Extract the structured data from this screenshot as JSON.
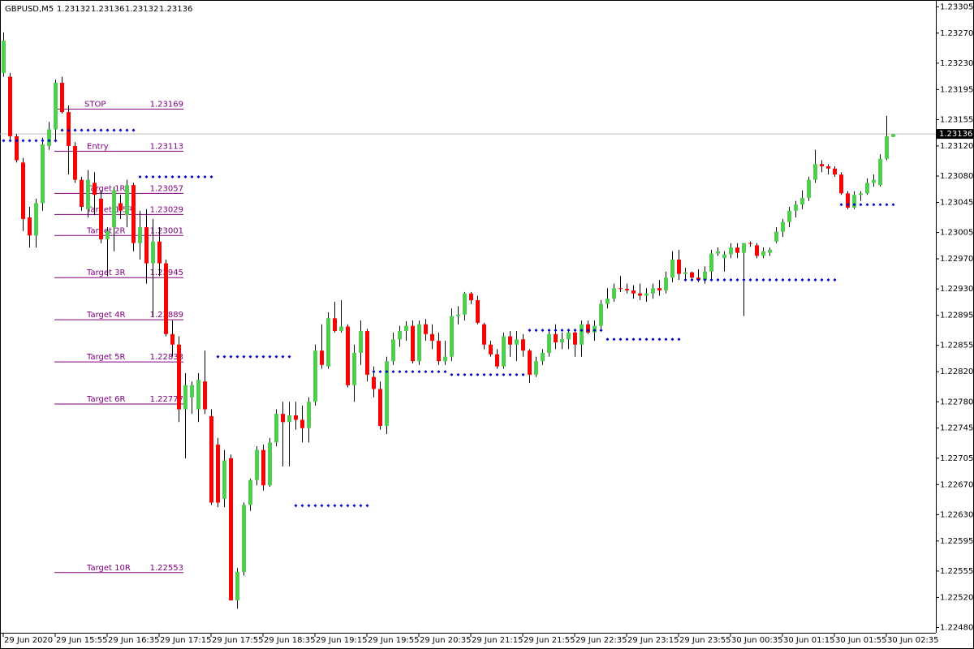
{
  "chart_data": {
    "type": "candlestick",
    "title": "GBPUSD,M5",
    "categories": [
      "29 Jun 2020",
      null,
      null,
      null,
      null,
      null,
      null,
      null,
      "29 Jun 15:55",
      null,
      null,
      null,
      null,
      null,
      null,
      null,
      "29 Jun 16:35",
      null,
      null,
      null,
      null,
      null,
      null,
      null,
      "29 Jun 17:15",
      null,
      null,
      null,
      null,
      null,
      null,
      null,
      "29 Jun 17:55",
      null,
      null,
      null,
      null,
      null,
      null,
      null,
      "29 Jun 18:35",
      null,
      null,
      null,
      null,
      null,
      null,
      null,
      "29 Jun 19:15",
      null,
      null,
      null,
      null,
      null,
      null,
      null,
      "29 Jun 19:55",
      null,
      null,
      null,
      null,
      null,
      null,
      null,
      "29 Jun 20:35",
      null,
      null,
      null,
      null,
      null,
      null,
      null,
      "29 Jun 21:15",
      null,
      null,
      null,
      null,
      null,
      null,
      null,
      "29 Jun 21:55",
      null,
      null,
      null,
      null,
      null,
      null,
      null,
      "29 Jun 22:35",
      null,
      null,
      null,
      null,
      null,
      null,
      null,
      "29 Jun 23:15",
      null,
      null,
      null,
      null,
      null,
      null,
      null,
      "29 Jun 23:55",
      null,
      null,
      null,
      null,
      null,
      null,
      null,
      "30 Jun 00:35",
      null,
      null,
      null,
      null,
      null,
      null,
      null,
      "30 Jun 01:15",
      null,
      null,
      null,
      null,
      null,
      null,
      null,
      "30 Jun 01:55",
      null,
      null,
      null,
      null,
      null,
      null,
      null,
      "30 Jun 02:35",
      null
    ],
    "open": [
      1.23217,
      1.23212,
      1.23133,
      1.23098,
      1.23025,
      1.23001,
      1.23044,
      1.2312,
      1.23142,
      1.23204,
      1.23165,
      1.2312,
      1.23075,
      1.23036,
      1.23071,
      1.2305,
      1.22996,
      1.23012,
      1.23044,
      1.23028,
      1.23068,
      1.22991,
      1.23012,
      1.22964,
      1.22993,
      1.22964,
      1.2287,
      1.22856,
      1.2277,
      1.22786,
      1.2277,
      1.22807,
      1.22761,
      1.22723,
      1.22651,
      1.22705,
      1.22516,
      1.22554,
      1.22643,
      1.22676,
      1.22716,
      1.22669,
      1.22726,
      1.22764,
      1.22753,
      1.22762,
      1.22756,
      1.22745,
      1.2278,
      1.22848,
      1.22827,
      1.22891,
      1.22874,
      1.2288,
      1.22802,
      1.22845,
      1.22874,
      1.22813,
      1.22797,
      1.22748,
      1.22834,
      1.22863,
      1.22874,
      1.22881,
      1.22834,
      1.22883,
      1.2287,
      1.22861,
      1.22834,
      1.2284,
      1.22894,
      1.22896,
      1.22924,
      1.22915,
      1.22883,
      1.22856,
      1.22843,
      1.22827,
      1.22867,
      1.22856,
      1.22863,
      1.22848,
      1.22816,
      1.22834,
      1.22845,
      1.2287,
      1.22859,
      1.22863,
      1.22872,
      1.22856,
      1.22883,
      1.22872,
      1.22881,
      1.2291,
      1.22917,
      1.22931,
      1.2293,
      1.22928,
      1.22924,
      1.22921,
      1.22924,
      1.22931,
      1.22928,
      1.22945,
      1.22969,
      1.2295,
      1.22952,
      1.22945,
      1.22942,
      1.22953,
      1.22977,
      1.22971,
      1.22976,
      1.22985,
      1.22978,
      1.22991,
      1.22988,
      1.22974,
      1.22978,
      1.22993,
      1.23006,
      1.23019,
      1.23034,
      1.23042,
      1.23051,
      1.23075,
      1.23096,
      1.23093,
      1.2309,
      1.23082,
      1.23057,
      1.23038,
      1.23055,
      1.23057,
      1.23071,
      1.23068,
      1.23103,
      1.23132
    ],
    "high": [
      1.23271,
      1.23217,
      1.23136,
      1.23104,
      1.23039,
      1.2305,
      1.23131,
      1.23152,
      1.23208,
      1.23212,
      1.23174,
      1.23125,
      1.23079,
      1.23088,
      1.23085,
      1.23061,
      1.23012,
      1.23066,
      1.23055,
      1.23075,
      1.23071,
      1.23034,
      1.23036,
      1.23023,
      1.23012,
      1.22969,
      1.22888,
      1.22867,
      1.22818,
      1.22807,
      1.22818,
      1.22848,
      1.2277,
      1.22732,
      1.22716,
      1.2271,
      1.22559,
      1.22646,
      1.22678,
      1.22721,
      1.22723,
      1.22732,
      1.2277,
      1.2278,
      1.2278,
      1.2278,
      1.22775,
      1.22786,
      1.22856,
      1.22883,
      1.22899,
      1.22913,
      1.22915,
      1.22883,
      1.22856,
      1.22888,
      1.22877,
      1.22827,
      1.22807,
      1.2284,
      1.22872,
      1.22881,
      1.22887,
      1.22888,
      1.22888,
      1.2289,
      1.22883,
      1.22872,
      1.22861,
      1.22904,
      1.22907,
      1.22926,
      1.22926,
      1.22921,
      1.22885,
      1.22861,
      1.2285,
      1.22872,
      1.22874,
      1.22874,
      1.2287,
      1.2285,
      1.2284,
      1.2285,
      1.22874,
      1.22883,
      1.22872,
      1.22877,
      1.22877,
      1.22888,
      1.22888,
      1.22888,
      1.22915,
      1.22931,
      1.22937,
      1.22947,
      1.22937,
      1.22935,
      1.22937,
      1.22931,
      1.22937,
      1.22942,
      1.22953,
      1.2298,
      1.22982,
      1.22958,
      1.22953,
      1.22956,
      1.2296,
      1.22982,
      1.22985,
      1.2298,
      1.22991,
      1.22991,
      1.22991,
      1.22993,
      1.22991,
      1.22985,
      1.22985,
      1.23012,
      1.23023,
      1.23039,
      1.23047,
      1.23061,
      1.23079,
      1.23115,
      1.23101,
      1.23096,
      1.23093,
      1.23085,
      1.2306,
      1.2306,
      1.2306,
      1.23077,
      1.23082,
      1.23109,
      1.2316,
      1.23136
    ],
    "low": [
      1.23212,
      1.23129,
      1.23098,
      1.23007,
      1.22985,
      1.22985,
      1.23034,
      1.23115,
      1.23125,
      1.23163,
      1.23082,
      1.23071,
      1.23034,
      1.23025,
      1.23028,
      1.22991,
      1.22947,
      1.2298,
      1.23023,
      1.23012,
      1.2298,
      1.22969,
      1.22937,
      1.22894,
      1.22947,
      1.22867,
      1.2284,
      1.22753,
      1.22705,
      1.22764,
      1.22753,
      1.22764,
      1.22643,
      1.2264,
      1.2264,
      1.22516,
      1.22505,
      1.22549,
      1.22635,
      1.22669,
      1.22662,
      1.22667,
      1.22721,
      1.22694,
      1.22694,
      1.22743,
      1.22726,
      1.22726,
      1.22775,
      1.22824,
      1.22824,
      1.22872,
      1.22872,
      1.22799,
      1.2278,
      1.22829,
      1.22807,
      1.22786,
      1.22743,
      1.22737,
      1.22829,
      1.22853,
      1.22861,
      1.22831,
      1.22829,
      1.22861,
      1.2285,
      1.22829,
      1.22829,
      1.22834,
      1.22883,
      1.22888,
      1.2291,
      1.22883,
      1.2285,
      1.2284,
      1.22824,
      1.22824,
      1.2284,
      1.22834,
      1.2284,
      1.22805,
      1.22813,
      1.22829,
      1.2284,
      1.2285,
      1.2285,
      1.2285,
      1.2284,
      1.2284,
      1.2287,
      1.22861,
      1.22877,
      1.22904,
      1.22913,
      1.22926,
      1.22924,
      1.22917,
      1.22915,
      1.22913,
      1.22917,
      1.22921,
      1.22924,
      1.22939,
      1.22942,
      1.22942,
      1.22942,
      1.22939,
      1.22937,
      1.22942,
      1.22974,
      1.22953,
      1.22971,
      1.22971,
      1.22894,
      1.22986,
      1.22971,
      1.22971,
      1.22974,
      1.22991,
      1.22999,
      1.23012,
      1.23025,
      1.23036,
      1.23047,
      1.23071,
      1.23085,
      1.23082,
      1.23079,
      1.23055,
      1.23036,
      1.23036,
      1.23047,
      1.23055,
      1.23066,
      1.23066,
      1.23101,
      1.23132
    ],
    "close": [
      1.2326,
      1.23133,
      1.23101,
      1.23023,
      1.23001,
      1.23044,
      1.23122,
      1.23142,
      1.23204,
      1.23165,
      1.2312,
      1.23075,
      1.23039,
      1.23075,
      1.23055,
      1.22996,
      1.23007,
      1.23061,
      1.23034,
      1.23068,
      1.22991,
      1.23012,
      1.22964,
      1.22993,
      1.22964,
      1.2287,
      1.22856,
      1.2277,
      1.22802,
      1.22802,
      1.22809,
      1.2277,
      1.22646,
      1.22646,
      1.22702,
      1.22516,
      1.22554,
      1.22643,
      1.22676,
      1.22716,
      1.22669,
      1.22726,
      1.22764,
      1.22753,
      1.22762,
      1.22756,
      1.22745,
      1.2278,
      1.22848,
      1.22829,
      1.22891,
      1.22874,
      1.2288,
      1.22802,
      1.22845,
      1.22874,
      1.22816,
      1.22797,
      1.22748,
      1.22834,
      1.22863,
      1.22874,
      1.22881,
      1.22834,
      1.22883,
      1.2287,
      1.22861,
      1.22834,
      1.2284,
      1.22894,
      1.22896,
      1.22924,
      1.22915,
      1.22885,
      1.22856,
      1.22843,
      1.22827,
      1.22867,
      1.22856,
      1.22863,
      1.22848,
      1.22816,
      1.22834,
      1.22845,
      1.2287,
      1.22859,
      1.22863,
      1.22872,
      1.22856,
      1.22883,
      1.22872,
      1.22881,
      1.2291,
      1.22917,
      1.22931,
      1.2293,
      1.22928,
      1.22924,
      1.22921,
      1.22924,
      1.22931,
      1.22928,
      1.22945,
      1.22969,
      1.2295,
      1.22952,
      1.22945,
      1.22942,
      1.22953,
      1.22977,
      1.2298,
      1.22976,
      1.22985,
      1.22978,
      1.22991,
      1.2299,
      1.22974,
      1.2298,
      1.22982,
      1.23006,
      1.23019,
      1.23034,
      1.23042,
      1.23051,
      1.23075,
      1.23096,
      1.23093,
      1.2309,
      1.23082,
      1.23057,
      1.23038,
      1.23055,
      1.23057,
      1.23071,
      1.23075,
      1.23103,
      1.23133,
      1.23136
    ],
    "up_color": "#50d050",
    "down_color": "#ff0000",
    "level_color": "#800080",
    "zone_color": "#0000cc",
    "ylim": [
      1.22473,
      1.23314
    ],
    "yticks": [
      1.23305,
      {
        "value": 1.2327,
        "label": "1.23270"
      },
      {
        "value": 1.2323,
        "label": "1.23230"
      },
      1.23195,
      1.23155,
      {
        "value": 1.2312,
        "label": "1.23120"
      },
      {
        "value": 1.2308,
        "label": "1.23080"
      },
      1.23045,
      1.23005,
      {
        "value": 1.2297,
        "label": "1.22970"
      },
      {
        "value": 1.2293,
        "label": "1.22930"
      },
      1.22895,
      1.22855,
      {
        "value": 1.2282,
        "label": "1.22820"
      },
      {
        "value": 1.2278,
        "label": "1.22780"
      },
      1.22745,
      1.22705,
      {
        "value": 1.2267,
        "label": "1.22670"
      },
      {
        "value": 1.2263,
        "label": "1.22630"
      },
      1.22595,
      1.22555,
      {
        "value": 1.2252,
        "label": "1.22520"
      },
      {
        "value": 1.2248,
        "label": "1.22480"
      }
    ],
    "levels": [
      {
        "label": "STOP",
        "value": 1.23169
      },
      {
        "label": "Entry",
        "value": 1.23113
      },
      {
        "label": "Target 1R",
        "value": 1.23057
      },
      {
        "label": "Target 1.5R",
        "value": 1.23029
      },
      {
        "label": "Target 2R",
        "value": 1.23001
      },
      {
        "label": "Target 3R",
        "value": 1.22945
      },
      {
        "label": "Target 4R",
        "value": 1.22889
      },
      {
        "label": "Target 5R",
        "value": 1.22833
      },
      {
        "label": "Target 6R",
        "value": 1.22777
      },
      {
        "label": "Target 10R",
        "value": 1.22553
      }
    ],
    "zones": [
      {
        "start": 0,
        "end": 8,
        "value": 1.23127
      },
      {
        "start": 9,
        "end": 20,
        "value": 1.23141
      },
      {
        "start": 21,
        "end": 32,
        "value": 1.23079
      },
      {
        "start": 33,
        "end": 44,
        "value": 1.2284
      },
      {
        "start": 45,
        "end": 56,
        "value": 1.22642
      },
      {
        "start": 57,
        "end": 68,
        "value": 1.2282
      },
      {
        "start": 69,
        "end": 80,
        "value": 1.22816
      },
      {
        "start": 81,
        "end": 92,
        "value": 1.22875
      },
      {
        "start": 93,
        "end": 104,
        "value": 1.22863
      },
      {
        "start": 105,
        "end": 128,
        "value": 1.22942
      },
      {
        "start": 129,
        "end": 137,
        "value": 1.23042
      }
    ]
  }
}
